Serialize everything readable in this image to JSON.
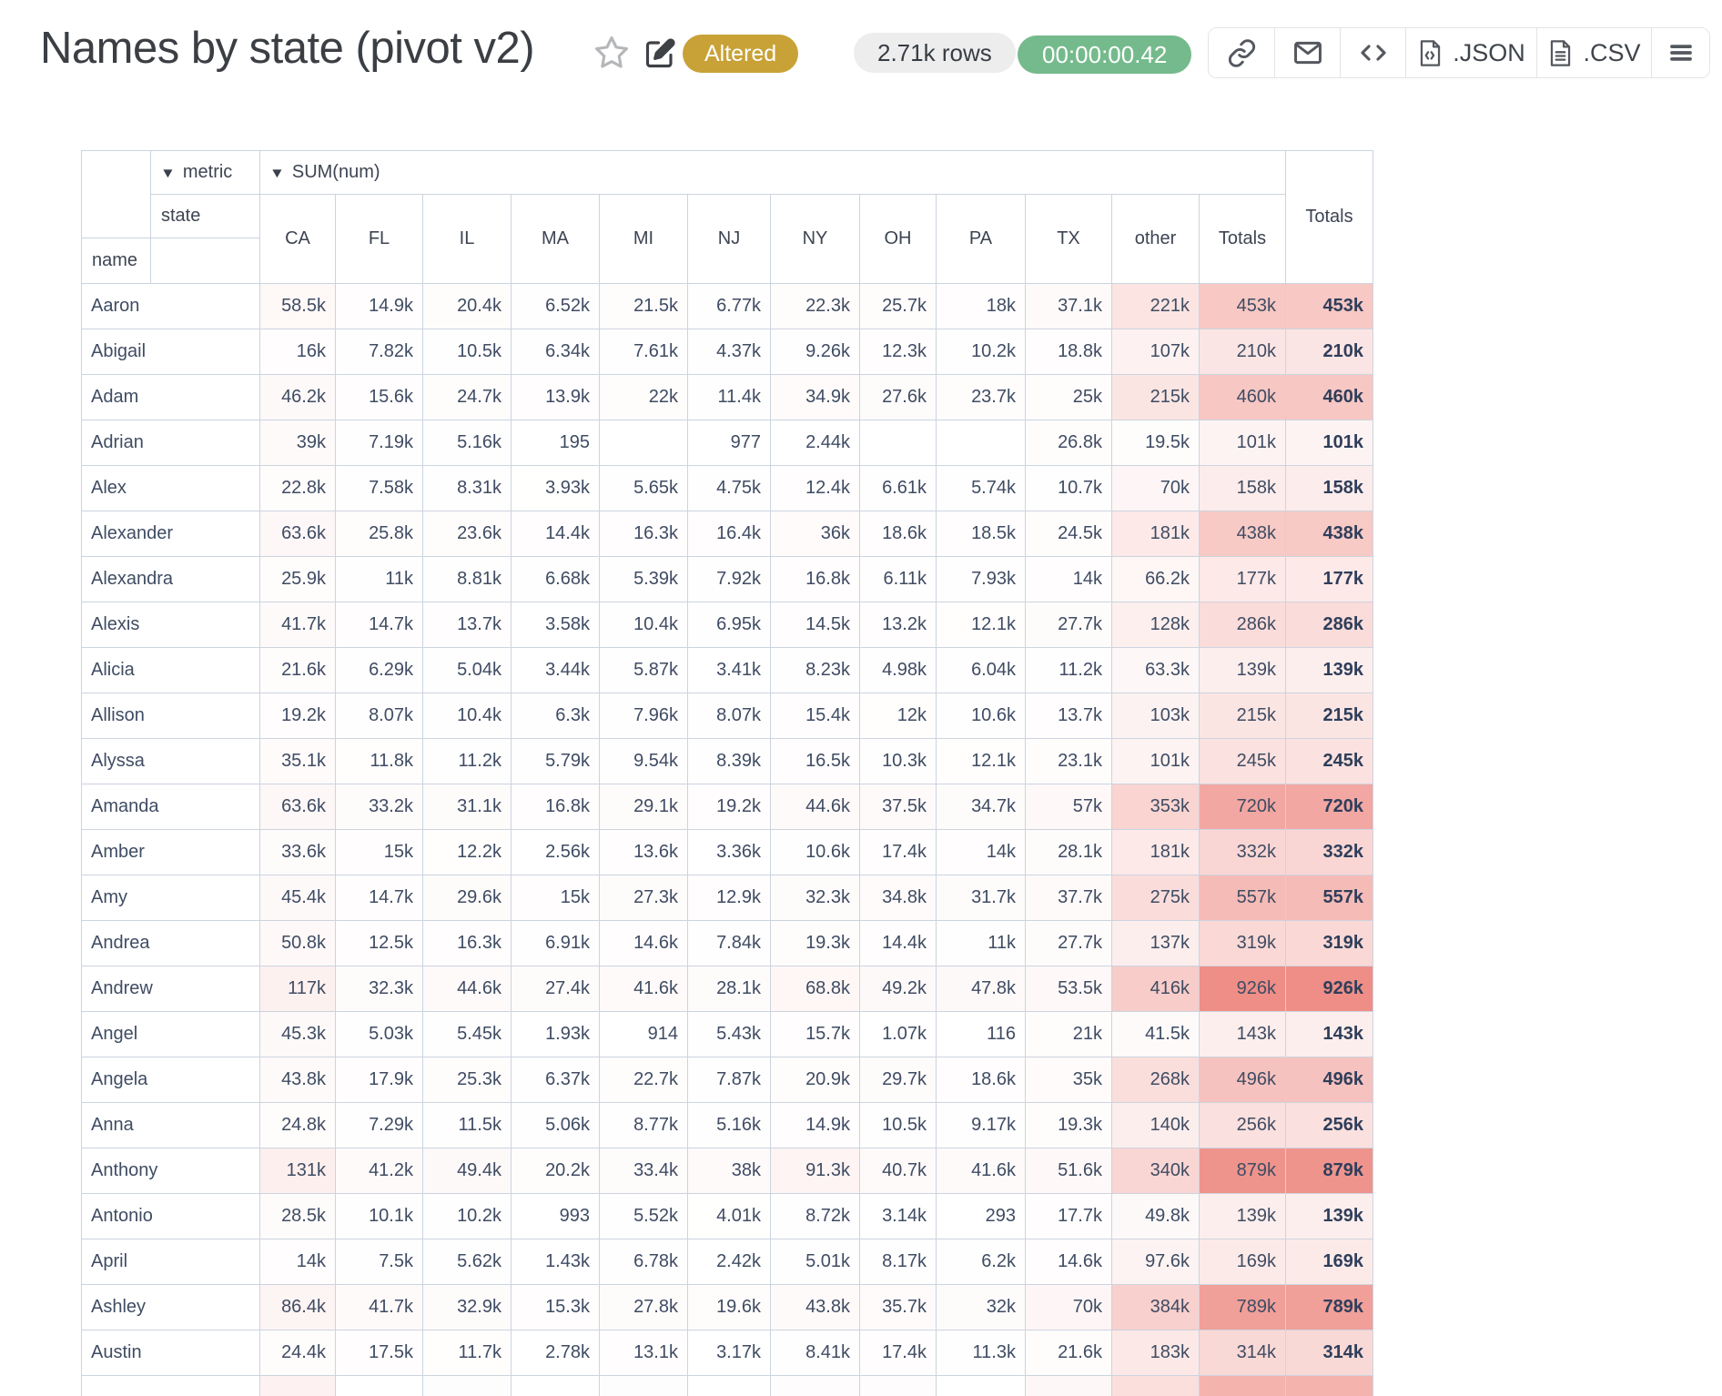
{
  "header": {
    "title": "Names by state (pivot v2)",
    "status_badge": "Altered",
    "rows_badge": "2.71k rows",
    "time_badge": "00:00:00.42",
    "toolbar": {
      "json_label": ".JSON",
      "csv_label": ".CSV"
    }
  },
  "pivot": {
    "metric_label": "metric",
    "metric_value": "SUM(num)",
    "state_label": "state",
    "name_label": "name",
    "grand_totals_label": "Totals",
    "columns": [
      "CA",
      "FL",
      "IL",
      "MA",
      "MI",
      "NJ",
      "NY",
      "OH",
      "PA",
      "TX",
      "other",
      "Totals"
    ],
    "heatmap": {
      "max_value": 926000,
      "max_color_rgb": [
        238,
        142,
        135
      ]
    },
    "rows": [
      {
        "name": "Aaron",
        "values": [
          "58.5k",
          "14.9k",
          "20.4k",
          "6.52k",
          "21.5k",
          "6.77k",
          "22.3k",
          "25.7k",
          "18k",
          "37.1k",
          "221k",
          "453k"
        ],
        "grand": "453k"
      },
      {
        "name": "Abigail",
        "values": [
          "16k",
          "7.82k",
          "10.5k",
          "6.34k",
          "7.61k",
          "4.37k",
          "9.26k",
          "12.3k",
          "10.2k",
          "18.8k",
          "107k",
          "210k"
        ],
        "grand": "210k"
      },
      {
        "name": "Adam",
        "values": [
          "46.2k",
          "15.6k",
          "24.7k",
          "13.9k",
          "22k",
          "11.4k",
          "34.9k",
          "27.6k",
          "23.7k",
          "25k",
          "215k",
          "460k"
        ],
        "grand": "460k"
      },
      {
        "name": "Adrian",
        "values": [
          "39k",
          "7.19k",
          "5.16k",
          "195",
          "",
          "977",
          "2.44k",
          "",
          "",
          "26.8k",
          "19.5k",
          "101k"
        ],
        "grand": "101k"
      },
      {
        "name": "Alex",
        "values": [
          "22.8k",
          "7.58k",
          "8.31k",
          "3.93k",
          "5.65k",
          "4.75k",
          "12.4k",
          "6.61k",
          "5.74k",
          "10.7k",
          "70k",
          "158k"
        ],
        "grand": "158k"
      },
      {
        "name": "Alexander",
        "values": [
          "63.6k",
          "25.8k",
          "23.6k",
          "14.4k",
          "16.3k",
          "16.4k",
          "36k",
          "18.6k",
          "18.5k",
          "24.5k",
          "181k",
          "438k"
        ],
        "grand": "438k"
      },
      {
        "name": "Alexandra",
        "values": [
          "25.9k",
          "11k",
          "8.81k",
          "6.68k",
          "5.39k",
          "7.92k",
          "16.8k",
          "6.11k",
          "7.93k",
          "14k",
          "66.2k",
          "177k"
        ],
        "grand": "177k"
      },
      {
        "name": "Alexis",
        "values": [
          "41.7k",
          "14.7k",
          "13.7k",
          "3.58k",
          "10.4k",
          "6.95k",
          "14.5k",
          "13.2k",
          "12.1k",
          "27.7k",
          "128k",
          "286k"
        ],
        "grand": "286k"
      },
      {
        "name": "Alicia",
        "values": [
          "21.6k",
          "6.29k",
          "5.04k",
          "3.44k",
          "5.87k",
          "3.41k",
          "8.23k",
          "4.98k",
          "6.04k",
          "11.2k",
          "63.3k",
          "139k"
        ],
        "grand": "139k"
      },
      {
        "name": "Allison",
        "values": [
          "19.2k",
          "8.07k",
          "10.4k",
          "6.3k",
          "7.96k",
          "8.07k",
          "15.4k",
          "12k",
          "10.6k",
          "13.7k",
          "103k",
          "215k"
        ],
        "grand": "215k"
      },
      {
        "name": "Alyssa",
        "values": [
          "35.1k",
          "11.8k",
          "11.2k",
          "5.79k",
          "9.54k",
          "8.39k",
          "16.5k",
          "10.3k",
          "12.1k",
          "23.1k",
          "101k",
          "245k"
        ],
        "grand": "245k"
      },
      {
        "name": "Amanda",
        "values": [
          "63.6k",
          "33.2k",
          "31.1k",
          "16.8k",
          "29.1k",
          "19.2k",
          "44.6k",
          "37.5k",
          "34.7k",
          "57k",
          "353k",
          "720k"
        ],
        "grand": "720k"
      },
      {
        "name": "Amber",
        "values": [
          "33.6k",
          "15k",
          "12.2k",
          "2.56k",
          "13.6k",
          "3.36k",
          "10.6k",
          "17.4k",
          "14k",
          "28.1k",
          "181k",
          "332k"
        ],
        "grand": "332k"
      },
      {
        "name": "Amy",
        "values": [
          "45.4k",
          "14.7k",
          "29.6k",
          "15k",
          "27.3k",
          "12.9k",
          "32.3k",
          "34.8k",
          "31.7k",
          "37.7k",
          "275k",
          "557k"
        ],
        "grand": "557k"
      },
      {
        "name": "Andrea",
        "values": [
          "50.8k",
          "12.5k",
          "16.3k",
          "6.91k",
          "14.6k",
          "7.84k",
          "19.3k",
          "14.4k",
          "11k",
          "27.7k",
          "137k",
          "319k"
        ],
        "grand": "319k"
      },
      {
        "name": "Andrew",
        "values": [
          "117k",
          "32.3k",
          "44.6k",
          "27.4k",
          "41.6k",
          "28.1k",
          "68.8k",
          "49.2k",
          "47.8k",
          "53.5k",
          "416k",
          "926k"
        ],
        "grand": "926k"
      },
      {
        "name": "Angel",
        "values": [
          "45.3k",
          "5.03k",
          "5.45k",
          "1.93k",
          "914",
          "5.43k",
          "15.7k",
          "1.07k",
          "116",
          "21k",
          "41.5k",
          "143k"
        ],
        "grand": "143k"
      },
      {
        "name": "Angela",
        "values": [
          "43.8k",
          "17.9k",
          "25.3k",
          "6.37k",
          "22.7k",
          "7.87k",
          "20.9k",
          "29.7k",
          "18.6k",
          "35k",
          "268k",
          "496k"
        ],
        "grand": "496k"
      },
      {
        "name": "Anna",
        "values": [
          "24.8k",
          "7.29k",
          "11.5k",
          "5.06k",
          "8.77k",
          "5.16k",
          "14.9k",
          "10.5k",
          "9.17k",
          "19.3k",
          "140k",
          "256k"
        ],
        "grand": "256k"
      },
      {
        "name": "Anthony",
        "values": [
          "131k",
          "41.2k",
          "49.4k",
          "20.2k",
          "33.4k",
          "38k",
          "91.3k",
          "40.7k",
          "41.6k",
          "51.6k",
          "340k",
          "879k"
        ],
        "grand": "879k"
      },
      {
        "name": "Antonio",
        "values": [
          "28.5k",
          "10.1k",
          "10.2k",
          "993",
          "5.52k",
          "4.01k",
          "8.72k",
          "3.14k",
          "293",
          "17.7k",
          "49.8k",
          "139k"
        ],
        "grand": "139k"
      },
      {
        "name": "April",
        "values": [
          "14k",
          "7.5k",
          "5.62k",
          "1.43k",
          "6.78k",
          "2.42k",
          "5.01k",
          "8.17k",
          "6.2k",
          "14.6k",
          "97.6k",
          "169k"
        ],
        "grand": "169k"
      },
      {
        "name": "Ashley",
        "values": [
          "86.4k",
          "41.7k",
          "32.9k",
          "15.3k",
          "27.8k",
          "19.6k",
          "43.8k",
          "35.7k",
          "32k",
          "70k",
          "384k",
          "789k"
        ],
        "grand": "789k"
      },
      {
        "name": "Austin",
        "values": [
          "24.4k",
          "17.5k",
          "11.7k",
          "2.78k",
          "13.1k",
          "3.17k",
          "8.41k",
          "17.4k",
          "11.3k",
          "21.6k",
          "183k",
          "314k"
        ],
        "grand": "314k"
      }
    ],
    "clipped_next_row_cell_colors": [
      "#fdf2f1",
      "#ffffff",
      "#fefdfd",
      "#ffffff",
      "#fefdfd",
      "#ffffff",
      "#fefcfc",
      "#fefcfc",
      "#ffffff",
      "#fdf8f7",
      "#fbdfdc",
      "#f5b3ad",
      "#f5b3ad"
    ]
  }
}
